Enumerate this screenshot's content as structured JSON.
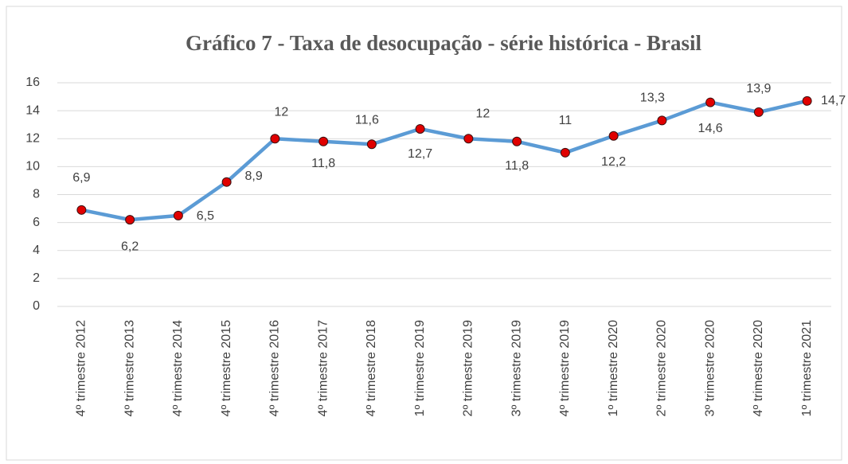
{
  "chart_data": {
    "type": "line",
    "title": "Gráfico 7 - Taxa de desocupação - série histórica - Brasil",
    "categories": [
      "4º trimestre 2012",
      "4º trimestre 2013",
      "4º trimestre 2014",
      "4º trimestre 2015",
      "4º trimestre 2016",
      "4º trimestre 2017",
      "4º trimestre 2018",
      "1º trimestre 2019",
      "2º trimestre 2019",
      "3º trimestre 2019",
      "4º trimestre 2019",
      "1º trimestre 2020",
      "2º trimestre 2020",
      "3º trimestre 2020",
      "4º trimestre 2020",
      "1º trimestre 2021"
    ],
    "values": [
      6.9,
      6.2,
      6.5,
      8.9,
      12,
      11.8,
      11.6,
      12.7,
      12,
      11.8,
      11,
      12.2,
      13.3,
      14.6,
      13.9,
      14.7
    ],
    "value_labels": [
      "6,9",
      "6,2",
      "6,5",
      "8,9",
      "12",
      "11,8",
      "11,6",
      "12,7",
      "12",
      "11,8",
      "11",
      "12,2",
      "13,3",
      "14,6",
      "13,9",
      "14,7"
    ],
    "color": "#5b9bd5",
    "marker_color": "#e00000",
    "ylim": [
      0,
      16
    ],
    "yticks": [
      0,
      2,
      4,
      6,
      8,
      10,
      12,
      14,
      16
    ],
    "grid": true
  }
}
